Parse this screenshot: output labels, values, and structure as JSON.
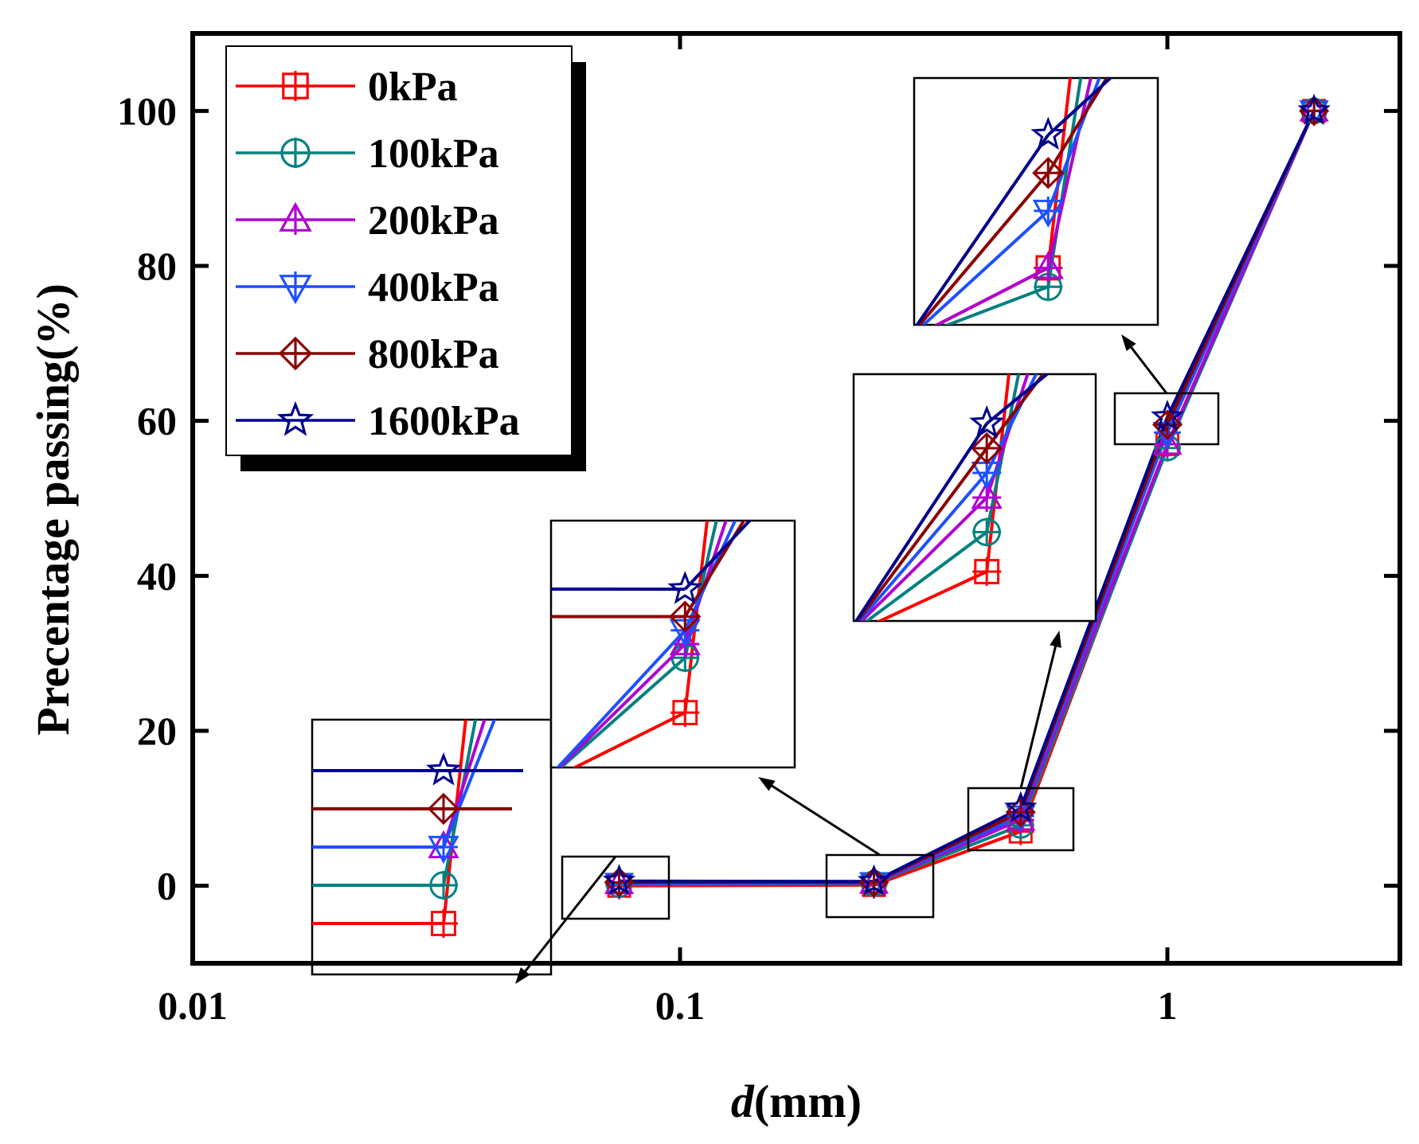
{
  "chart_data": {
    "type": "line",
    "xscale": "log",
    "xlabel_italic": "d",
    "xlabel_rest": "(mm)",
    "ylabel": "Precentage passing(%)",
    "xlim": [
      0.01,
      3
    ],
    "ylim": [
      -10,
      110
    ],
    "xticks": [
      0.01,
      0.1,
      1
    ],
    "xtick_labels": [
      "0.01",
      "0.1",
      "1"
    ],
    "yticks": [
      0,
      20,
      40,
      60,
      80,
      100
    ],
    "ytick_labels": [
      "0",
      "20",
      "40",
      "60",
      "80",
      "100"
    ],
    "legend_position": "top-left",
    "x": [
      0.075,
      0.25,
      0.5,
      1,
      2
    ],
    "series": [
      {
        "name": "0kPa",
        "color": "#ff0000",
        "marker": "square-plus",
        "values": [
          0.0,
          0.1,
          7.0,
          57.0,
          100
        ]
      },
      {
        "name": "100kPa",
        "color": "#008080",
        "marker": "circle-plus",
        "values": [
          0.15,
          0.3,
          7.8,
          56.5,
          100
        ]
      },
      {
        "name": "200kPa",
        "color": "#b000d0",
        "marker": "triangle-up-plus",
        "values": [
          0.3,
          0.35,
          8.5,
          57.0,
          100
        ]
      },
      {
        "name": "400kPa",
        "color": "#1e50ff",
        "marker": "triangle-down-plus",
        "values": [
          0.3,
          0.4,
          9.0,
          58.5,
          100
        ]
      },
      {
        "name": "800kPa",
        "color": "#8b0000",
        "marker": "diamond-plus",
        "values": [
          0.45,
          0.45,
          9.5,
          59.5,
          100
        ]
      },
      {
        "name": "1600kPa",
        "color": "#00008b",
        "marker": "star",
        "values": [
          0.6,
          0.55,
          10.0,
          60.5,
          100
        ]
      }
    ],
    "insets": [
      {
        "name": "inset-0.075",
        "x_range": [
          0.0745,
          0.0755
        ],
        "y_range": [
          -0.2,
          0.8
        ],
        "target": "near 0.075"
      },
      {
        "name": "inset-0.25",
        "x_range": [
          0.2485,
          0.2515
        ],
        "y_range": [
          -0.1,
          0.8
        ],
        "target": "near 0.25"
      },
      {
        "name": "inset-0.5",
        "x_range": [
          0.495,
          0.505
        ],
        "y_range": [
          6.0,
          11.0
        ],
        "target": "near 0.5"
      },
      {
        "name": "inset-1",
        "x_range": [
          0.99,
          1.01
        ],
        "y_range": [
          55.5,
          62.0
        ],
        "target": "near 1"
      }
    ]
  }
}
